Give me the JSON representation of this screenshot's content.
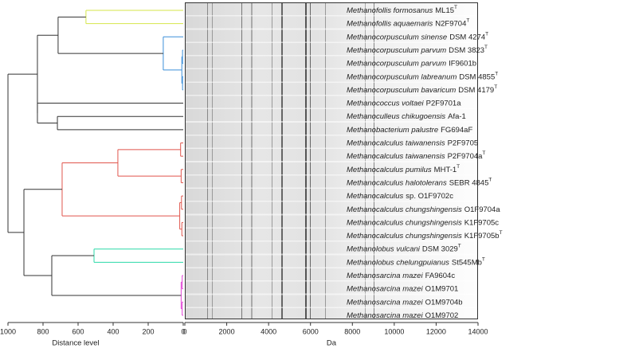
{
  "strains": [
    {
      "italic": "Methanofollis formosanus",
      "roman": "ML15",
      "sup": "T"
    },
    {
      "italic": "Methanofollis aquaemaris",
      "roman": "N2F9704",
      "sup": "T"
    },
    {
      "italic": "Methanocorpusculum sinense",
      "roman": "DSM 4274",
      "sup": "T"
    },
    {
      "italic": "Methanocorpusculum parvum",
      "roman": "DSM 3823",
      "sup": "T"
    },
    {
      "italic": "Methanocorpusculum parvum",
      "roman": "IF9601b"
    },
    {
      "italic": "Methanocorpusculum labreanum",
      "roman": "DSM 4855",
      "sup": "T"
    },
    {
      "italic": "Methanocorpusculum bavaricum",
      "roman": "DSM 4179",
      "sup": "T"
    },
    {
      "italic": "Methanococcus voltaei",
      "roman": "P2F9701a"
    },
    {
      "italic": "Methanoculleus chikugoensis",
      "roman": "Afa-1"
    },
    {
      "italic": "Methanobacterium palustre",
      "roman": "FG694aF"
    },
    {
      "italic": "Methanocalculus taiwanensis",
      "roman": "P2F9705"
    },
    {
      "italic": "Methanocalculus taiwanensis",
      "roman": "P2F9704a",
      "sup": "T"
    },
    {
      "italic": "Methanocalculus pumilus",
      "roman": "MHT-1",
      "sup": "T"
    },
    {
      "italic": "Methanocalculus halotolerans",
      "roman": "SEBR 4845",
      "sup": "T"
    },
    {
      "italic": "Methanocalculus",
      "roman": "sp. O1F9702c"
    },
    {
      "italic": "Methanocalculus chungshingensis",
      "roman": "O1F9704a"
    },
    {
      "italic": "Methanocalculus chungshingensis",
      "roman": "K1F9705c"
    },
    {
      "italic": "Methanocalculus chungshingensis",
      "roman": "K1F9705b",
      "sup": "T"
    },
    {
      "italic": "Methanolobus vulcani",
      "roman": "DSM 3029",
      "sup": "T"
    },
    {
      "italic": "Methanolobus chelungpuianus",
      "roman": "St545Mb",
      "sup": "T"
    },
    {
      "italic": "Methanosarcina mazei",
      "roman": "FA9604c"
    },
    {
      "italic": "Methanosarcina mazei",
      "roman": "O1M9701"
    },
    {
      "italic": "Methanosarcina mazei",
      "roman": "O1M9704b"
    },
    {
      "italic": "Methanosarcina mazei",
      "roman": "O1M9702"
    }
  ],
  "tree": {
    "h": 1000,
    "c": [
      {
        "h": 832,
        "c": [
          {
            "h": 714,
            "c": [
              {
                "h": 555,
                "color": "#d4e64a",
                "c": [
                  0,
                  1
                ]
              },
              {
                "h": 114,
                "color": "#3b8fd9",
                "c": [
                  2,
                  {
                    "h": 8,
                    "c": [
                      {
                        "h": 4,
                        "c": [
                          3,
                          4
                        ]
                      },
                      {
                        "h": 4,
                        "c": [
                          5,
                          6
                        ]
                      }
                    ]
                  }
                ]
              }
            ]
          },
          {
            "h": 832,
            "c": [
              7,
              {
                "h": 718,
                "c": [
                  8,
                  9
                ]
              }
            ]
          }
        ]
      },
      {
        "h": 909,
        "c": [
          {
            "h": 691,
            "color": "#e0554c",
            "c": [
              {
                "h": 373,
                "c": [
                  {
                    "h": 15,
                    "c": [
                      10,
                      11
                    ]
                  },
                  {
                    "h": 12,
                    "c": [
                      12,
                      13
                    ]
                  }
                ]
              },
              {
                "h": 20,
                "c": [
                  {
                    "h": 10,
                    "c": [
                      14,
                      15
                    ]
                  },
                  {
                    "h": 8,
                    "c": [
                      16,
                      17
                    ]
                  }
                ]
              }
            ]
          },
          {
            "h": 750,
            "c": [
              {
                "h": 509,
                "color": "#2ad9a8",
                "c": [
                  18,
                  19
                ]
              },
              {
                "h": 12,
                "color": "#e040d4",
                "c": [
                  {
                    "h": 6,
                    "c": [
                      20,
                      21
                    ]
                  },
                  {
                    "h": 6,
                    "c": [
                      22,
                      23
                    ]
                  }
                ]
              }
            ]
          }
        ]
      }
    ]
  },
  "distance_axis": {
    "label": "Distance level",
    "xlim": [
      1000,
      0
    ],
    "xticks": [
      1000,
      800,
      600,
      400,
      200,
      0
    ]
  },
  "mass_axis": {
    "label": "Da",
    "xlim": [
      0,
      14000
    ],
    "xticks": [
      0,
      2000,
      4000,
      6000,
      8000,
      10000,
      12000,
      14000
    ]
  }
}
